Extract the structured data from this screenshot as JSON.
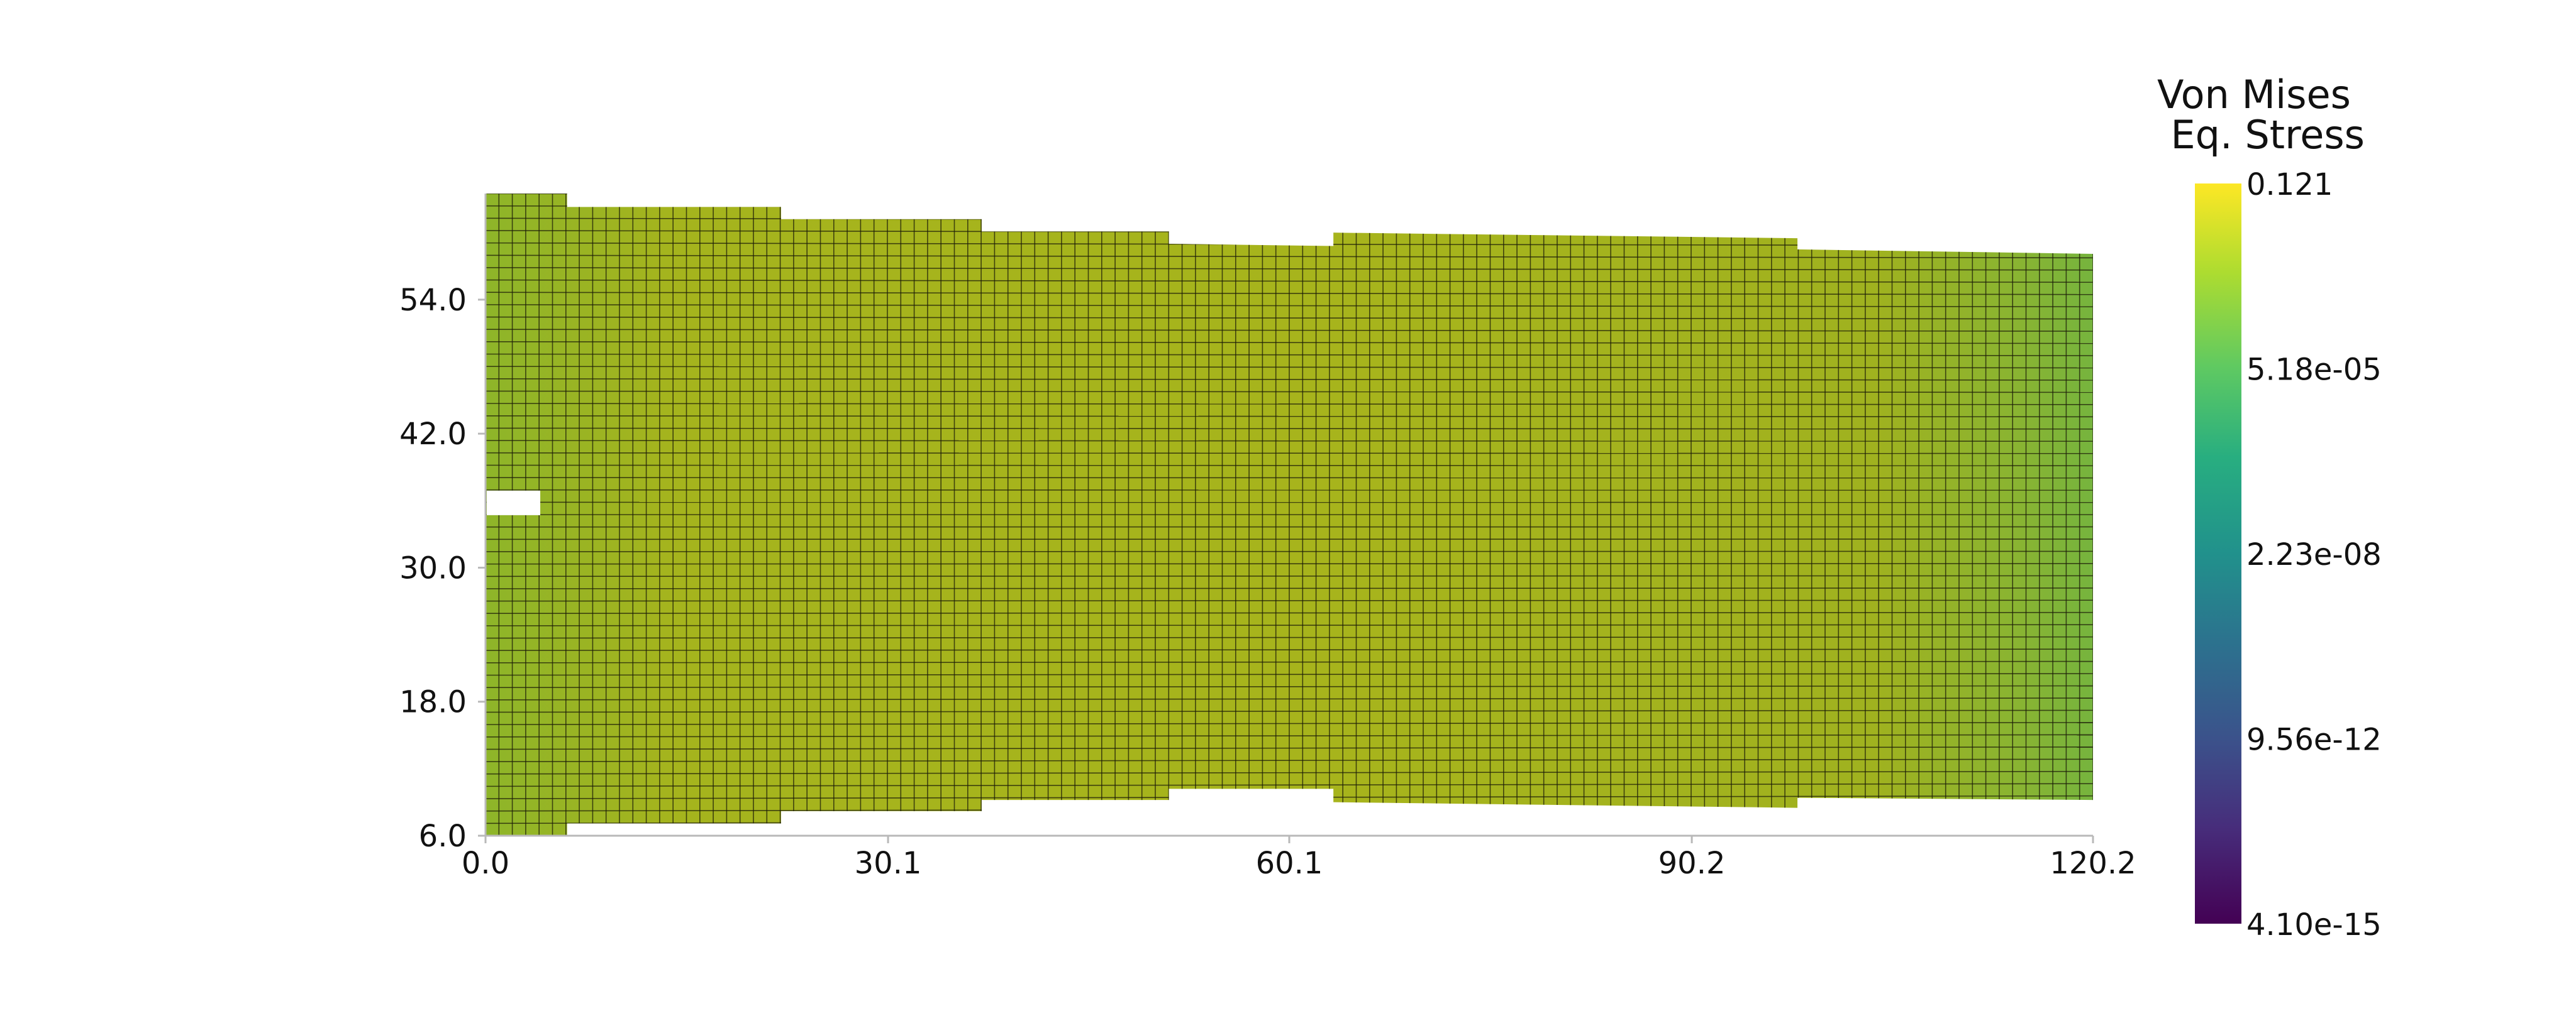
{
  "chart_data": {
    "type": "heatmap",
    "title": "",
    "xlabel": "",
    "ylabel": "",
    "x_ticks": [
      "0.0",
      "30.1",
      "60.1",
      "90.2",
      "120.2"
    ],
    "x_tick_values": [
      0.0,
      30.1,
      60.1,
      90.2,
      120.2
    ],
    "y_ticks": [
      "6.0",
      "18.0",
      "30.0",
      "42.0",
      "54.0"
    ],
    "y_tick_values": [
      6.0,
      18.0,
      30.0,
      42.0,
      54.0
    ],
    "xlim": [
      0.0,
      120.2
    ],
    "ylim": [
      6.0,
      63.5
    ],
    "grid": false,
    "colorbar": {
      "title_lines": [
        "Von Mises",
        "Eq. Stress"
      ],
      "labels": [
        "0.121",
        "5.18e-05",
        "2.23e-08",
        "9.56e-12",
        "4.10e-15"
      ],
      "scale": "log",
      "colormap": "viridis",
      "colors": [
        "#fde725",
        "#5ec962",
        "#21918c",
        "#3b528b",
        "#440154"
      ],
      "placement": "right"
    },
    "mesh": {
      "columns": 120,
      "rows": 52,
      "line_color": "#1c1c08",
      "segments": [
        {
          "x0": 0.0,
          "x1": 6.1,
          "bottom": 6.0,
          "top": 63.5
        },
        {
          "x0": 6.1,
          "x1": 22.1,
          "bottom": 7.1,
          "top": 62.3
        },
        {
          "x0": 22.1,
          "x1": 37.1,
          "bottom": 8.2,
          "top": 61.2
        },
        {
          "x0": 37.1,
          "x1": 51.1,
          "bottom": 9.2,
          "top": 60.1
        },
        {
          "x0": 51.1,
          "x1": 63.4,
          "bottom": 10.2,
          "top": 59.0,
          "top_end": 58.8
        },
        {
          "x0": 63.4,
          "x1": 98.1,
          "bottom": 9.0,
          "top": 60.0,
          "bottom_end": 8.5,
          "top_end": 59.5
        },
        {
          "x0": 98.1,
          "x1": 120.2,
          "bottom": 9.4,
          "top": 58.5,
          "bottom_end": 9.2,
          "top_end": 58.1
        }
      ],
      "hole": {
        "x0": 0.0,
        "x1": 4.0,
        "y0": 34.7,
        "y1": 36.9
      }
    }
  }
}
